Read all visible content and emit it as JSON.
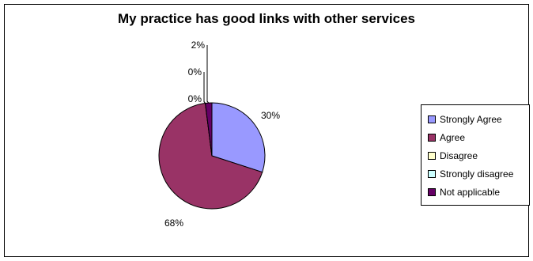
{
  "chart_data": {
    "type": "pie",
    "title": "My practice has good links with other services",
    "categories": [
      "Strongly Agree",
      "Agree",
      "Disagree",
      "Strongly disagree",
      "Not applicable"
    ],
    "values": [
      30,
      68,
      0,
      0,
      2
    ],
    "data_labels": [
      "30%",
      "68%",
      "0%",
      "0%",
      "2%"
    ],
    "colors": [
      "#9999FF",
      "#993366",
      "#FFFFCC",
      "#CCFFFF",
      "#660066"
    ],
    "legend_position": "right"
  }
}
